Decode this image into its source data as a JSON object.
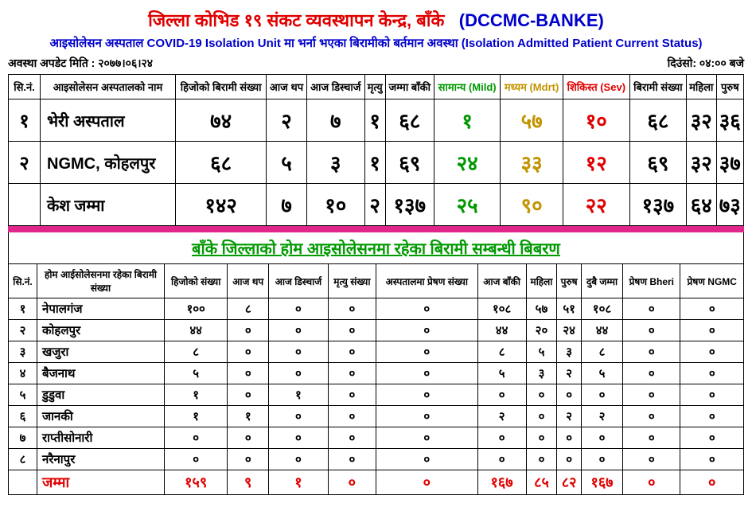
{
  "header": {
    "title_red": "जिल्ला कोभिड १९ संकट व्यवस्थापन केन्द्र, बाँके",
    "title_blue": "(DCCMC-BANKE)",
    "subtitle": "आइसोलेसन अस्पताल COVID-19 Isolation Unit मा भर्ना भएका बिरामीको बर्तमान अवस्था (Isolation Admitted Patient Current Status)",
    "update_label": "अवस्था अपडेट मिति : २०७७।०६।२४",
    "time_label": "दिउंसो: ०४:०० बजे"
  },
  "t1": {
    "headers": {
      "sn": "सि.नं.",
      "name": "आइसोलेसन अस्पतालको नाम",
      "prev": "हिजोको बिरामी संख्या",
      "added": "आज थप",
      "discharge": "आज डिस्चार्ज",
      "death": "मृत्यु",
      "remaining": "जम्मा बाँकी",
      "mild": "सामान्य (Mild)",
      "mdrt": "मध्यम (Mdrt)",
      "sev": "शिकिस्त (Sev)",
      "count": "बिरामी संख्या",
      "f": "महिला",
      "m": "पुरुष"
    },
    "rows": [
      {
        "sn": "१",
        "name": "भेरी अस्पताल",
        "prev": "७४",
        "added": "२",
        "discharge": "७",
        "death": "१",
        "remaining": "६८",
        "mild": "१",
        "mdrt": "५७",
        "sev": "१०",
        "count": "६८",
        "f": "३२",
        "m": "३६"
      },
      {
        "sn": "२",
        "name": "NGMC, कोहलपुर",
        "prev": "६८",
        "added": "५",
        "discharge": "३",
        "death": "१",
        "remaining": "६९",
        "mild": "२४",
        "mdrt": "३३",
        "sev": "१२",
        "count": "६९",
        "f": "३२",
        "m": "३७"
      }
    ],
    "total": {
      "label": "केश जम्मा",
      "prev": "१४२",
      "added": "७",
      "discharge": "१०",
      "death": "२",
      "remaining": "१३७",
      "mild": "२५",
      "mdrt": "९०",
      "sev": "२२",
      "count": "१३७",
      "f": "६४",
      "m": "७३"
    }
  },
  "sec2_title": "बाँके जिल्लाको होम आइसोलेसनमा रहेका बिरामी सम्बन्धी बिबरण",
  "t2": {
    "headers": {
      "sn": "सि.नं.",
      "name": "होम आईसोलेसनमा रहेका बिरामी संख्या",
      "prev": "हिजोको संख्या",
      "added": "आज थप",
      "discharge": "आज डिस्चार्ज",
      "death": "मृत्यु संख्या",
      "refer": "अस्पतालमा प्रेषण संख्या",
      "today": "आज बाँकी",
      "f": "महिला",
      "m": "पुरुष",
      "both": "दुबै जम्मा",
      "bheri": "प्रेषण Bheri",
      "ngmc": "प्रेषण NGMC"
    },
    "rows": [
      {
        "sn": "१",
        "name": "नेपालगंज",
        "prev": "१००",
        "added": "८",
        "discharge": "०",
        "death": "०",
        "refer": "०",
        "today": "१०८",
        "f": "५७",
        "m": "५१",
        "both": "१०८",
        "bheri": "०",
        "ngmc": "०"
      },
      {
        "sn": "२",
        "name": "कोहलपुर",
        "prev": "४४",
        "added": "०",
        "discharge": "०",
        "death": "०",
        "refer": "०",
        "today": "४४",
        "f": "२०",
        "m": "२४",
        "both": "४४",
        "bheri": "०",
        "ngmc": "०"
      },
      {
        "sn": "३",
        "name": "खजुरा",
        "prev": "८",
        "added": "०",
        "discharge": "०",
        "death": "०",
        "refer": "०",
        "today": "८",
        "f": "५",
        "m": "३",
        "both": "८",
        "bheri": "०",
        "ngmc": "०"
      },
      {
        "sn": "४",
        "name": "बैजनाथ",
        "prev": "५",
        "added": "०",
        "discharge": "०",
        "death": "०",
        "refer": "०",
        "today": "५",
        "f": "३",
        "m": "२",
        "both": "५",
        "bheri": "०",
        "ngmc": "०"
      },
      {
        "sn": "५",
        "name": "डुडुवा",
        "prev": "१",
        "added": "०",
        "discharge": "१",
        "death": "०",
        "refer": "०",
        "today": "०",
        "f": "०",
        "m": "०",
        "both": "०",
        "bheri": "०",
        "ngmc": "०"
      },
      {
        "sn": "६",
        "name": "जानकी",
        "prev": "१",
        "added": "१",
        "discharge": "०",
        "death": "०",
        "refer": "०",
        "today": "२",
        "f": "०",
        "m": "२",
        "both": "२",
        "bheri": "०",
        "ngmc": "०"
      },
      {
        "sn": "७",
        "name": "राप्तीसोनारी",
        "prev": "०",
        "added": "०",
        "discharge": "०",
        "death": "०",
        "refer": "०",
        "today": "०",
        "f": "०",
        "m": "०",
        "both": "०",
        "bheri": "०",
        "ngmc": "०"
      },
      {
        "sn": "८",
        "name": "नरैनापुर",
        "prev": "०",
        "added": "०",
        "discharge": "०",
        "death": "०",
        "refer": "०",
        "today": "०",
        "f": "०",
        "m": "०",
        "both": "०",
        "bheri": "०",
        "ngmc": "०"
      }
    ],
    "total": {
      "name": "जम्मा",
      "prev": "१५९",
      "added": "९",
      "discharge": "१",
      "death": "०",
      "refer": "०",
      "today": "१६७",
      "f": "८५",
      "m": "८२",
      "both": "१६७",
      "bheri": "०",
      "ngmc": "०"
    }
  }
}
